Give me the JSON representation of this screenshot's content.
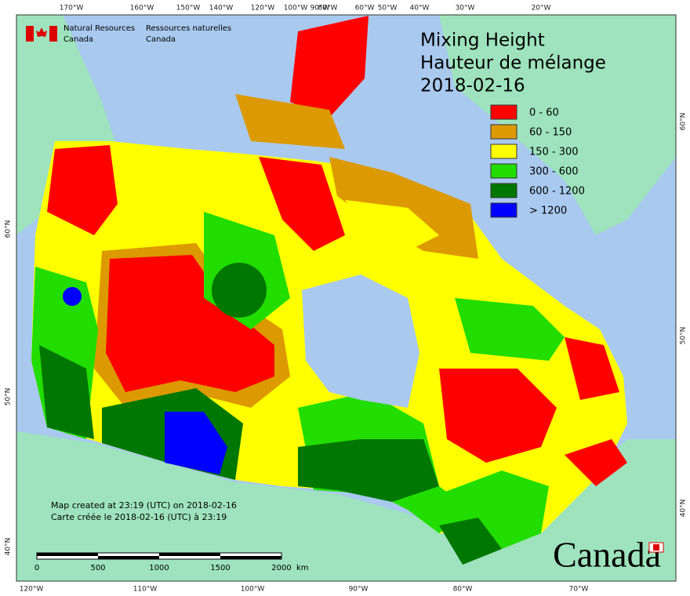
{
  "agency": {
    "en_line1": "Natural Resources",
    "en_line2": "Canada",
    "fr_line1": "Ressources naturelles",
    "fr_line2": "Canada"
  },
  "title": [
    "Mixing Height",
    "Hauteur de mélange",
    "2018-02-16"
  ],
  "legend": [
    {
      "label": "0 - 60",
      "color": "#ff0000"
    },
    {
      "label": "60 - 150",
      "color": "#dd9900"
    },
    {
      "label": "150 - 300",
      "color": "#ffff00"
    },
    {
      "label": "300 - 600",
      "color": "#22dd00"
    },
    {
      "label": "600 - 1200",
      "color": "#007700"
    },
    {
      "label": "> 1200",
      "color": "#0000ff"
    }
  ],
  "graticule": {
    "top": [
      "170°W",
      "160°W",
      "150°W",
      "140°W",
      "120°W",
      "100°W",
      "90°W",
      "80°W",
      "60°W",
      "50°W",
      "40°W",
      "30°W",
      "20°W"
    ],
    "bottom": [
      "120°W",
      "110°W",
      "100°W",
      "90°W",
      "80°W",
      "70°W"
    ],
    "left": [
      "60°N",
      "50°N",
      "40°N"
    ],
    "right": [
      "60°N",
      "50°N",
      "40°N"
    ]
  },
  "notes": [
    "Map created at 23:19 (UTC) on 2018-02-16",
    "Carte créée le 2018-02-16 (UTC) à 23:19"
  ],
  "scale_bar": {
    "labels": [
      0,
      500,
      1000,
      1500,
      2000
    ],
    "unit": "km"
  },
  "wordmark": "Canada"
}
